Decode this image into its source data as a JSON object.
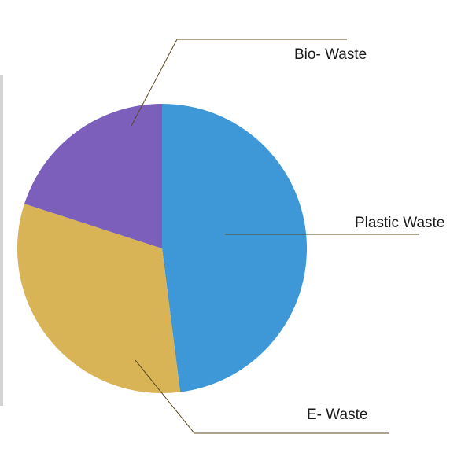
{
  "chart_data": {
    "type": "pie",
    "title": "",
    "start_angle_deg": 0,
    "direction": "clockwise",
    "slices": [
      {
        "name": "Plastic Waste",
        "value": 48,
        "color": "#3e97d6"
      },
      {
        "name": "E- Waste",
        "value": 32,
        "color": "#d8b456"
      },
      {
        "name": "Bio- Waste",
        "value": 20,
        "color": "#7b5fba"
      }
    ],
    "legend": "none",
    "labels": "outside with leader lines"
  }
}
